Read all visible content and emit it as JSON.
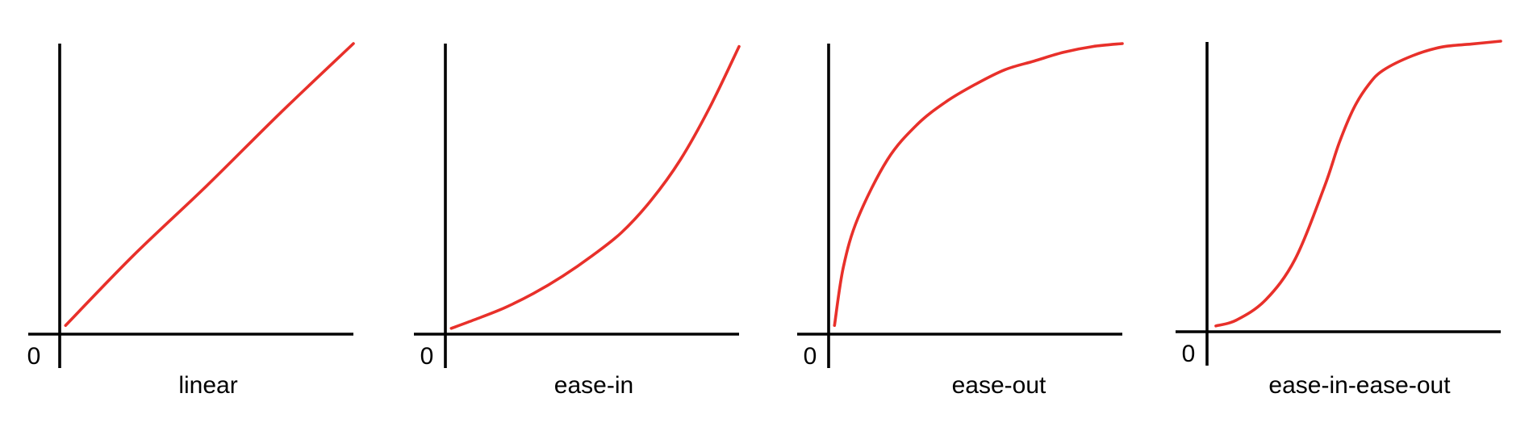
{
  "colors": {
    "curve": "#e8302a",
    "axis": "#000000"
  },
  "chart_data": [
    {
      "type": "line",
      "title": "linear",
      "origin_label": "0",
      "xlim": [
        0,
        1
      ],
      "ylim": [
        0,
        1
      ],
      "grid": false,
      "series": [
        {
          "x": [
            0.02,
            0.25,
            0.5,
            0.75,
            1.0
          ],
          "y": [
            0.03,
            0.27,
            0.51,
            0.76,
            1.0
          ]
        }
      ]
    },
    {
      "type": "line",
      "title": "ease-in",
      "origin_label": "0",
      "xlim": [
        0,
        1
      ],
      "ylim": [
        0,
        1
      ],
      "grid": false,
      "series": [
        {
          "x": [
            0.02,
            0.1,
            0.2,
            0.3,
            0.4,
            0.5,
            0.6,
            0.7,
            0.8,
            0.9,
            1.0
          ],
          "y": [
            0.02,
            0.05,
            0.09,
            0.14,
            0.2,
            0.27,
            0.35,
            0.46,
            0.6,
            0.78,
            0.99
          ]
        }
      ]
    },
    {
      "type": "line",
      "title": "ease-out",
      "origin_label": "0",
      "xlim": [
        0,
        1
      ],
      "ylim": [
        0,
        1
      ],
      "grid": false,
      "series": [
        {
          "x": [
            0.02,
            0.05,
            0.1,
            0.2,
            0.3,
            0.4,
            0.5,
            0.6,
            0.7,
            0.8,
            0.9,
            1.0
          ],
          "y": [
            0.03,
            0.23,
            0.4,
            0.6,
            0.72,
            0.8,
            0.86,
            0.91,
            0.94,
            0.97,
            0.99,
            1.0
          ]
        }
      ]
    },
    {
      "type": "line",
      "title": "ease-in-ease-out",
      "origin_label": "0",
      "xlim": [
        0,
        1
      ],
      "ylim": [
        0,
        1
      ],
      "grid": false,
      "series": [
        {
          "x": [
            0.03,
            0.1,
            0.2,
            0.3,
            0.4,
            0.45,
            0.5,
            0.55,
            0.6,
            0.7,
            0.8,
            0.9,
            1.0
          ],
          "y": [
            0.02,
            0.04,
            0.11,
            0.25,
            0.5,
            0.65,
            0.77,
            0.85,
            0.9,
            0.95,
            0.98,
            0.99,
            1.0
          ]
        }
      ]
    }
  ]
}
